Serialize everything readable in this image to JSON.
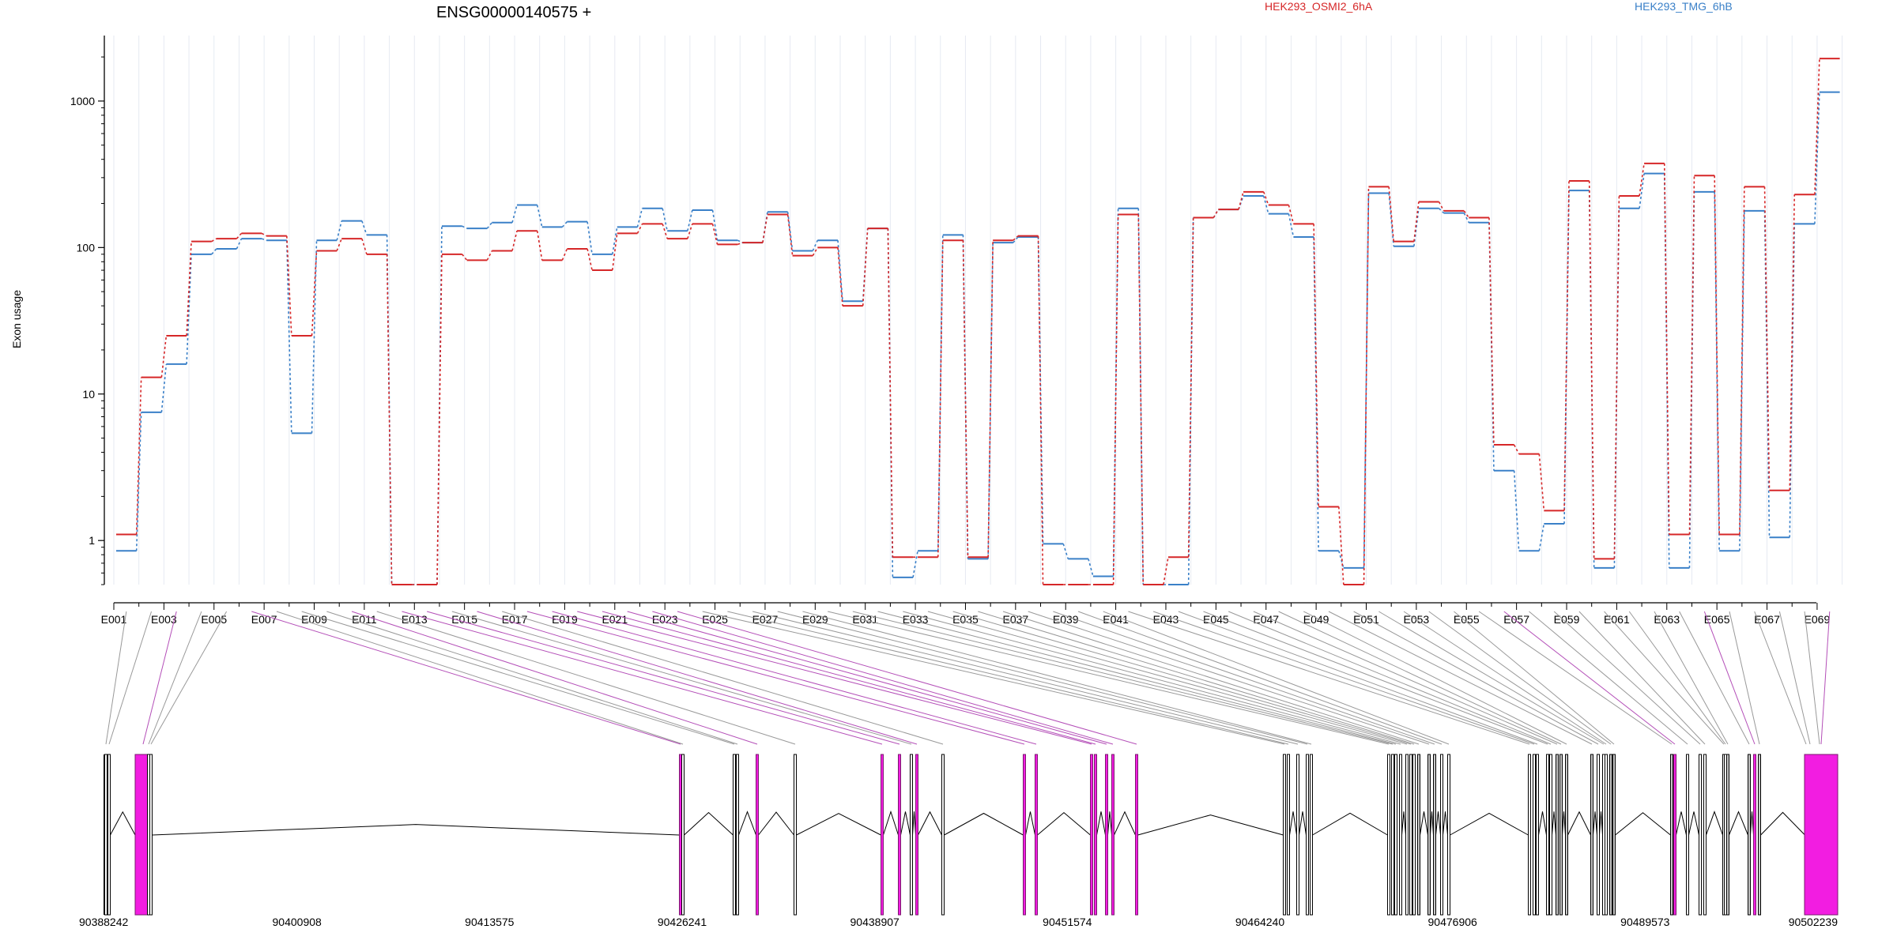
{
  "chart_data": {
    "type": "line",
    "title": "ENSG00000140575 +",
    "ylabel": "Exon usage",
    "yscale": "log",
    "ylim": [
      0.5,
      2800
    ],
    "yticks": [
      1,
      10,
      100,
      1000
    ],
    "ytick_labels": [
      "1",
      "10",
      "100",
      "1000"
    ],
    "colors": {
      "HEK293_OSMI2_6hA": "#d62728",
      "HEK293_TMG_6hB": "#3a80c8",
      "exon_highlight": "#f21de1",
      "exon_plain": "#ffffff",
      "exon_gray": "#c8c8c8"
    },
    "legend_position": "top",
    "exon_tick_labels": [
      "E001",
      "E003",
      "E005",
      "E007",
      "E009",
      "E011",
      "E013",
      "E015",
      "E017",
      "E019",
      "E021",
      "E023",
      "E025",
      "E027",
      "E029",
      "E031",
      "E033",
      "E035",
      "E037",
      "E039",
      "E041",
      "E043",
      "E045",
      "E047",
      "E049",
      "E051",
      "E053",
      "E055",
      "E057",
      "E059",
      "E061",
      "E063",
      "E065",
      "E067",
      "E069"
    ],
    "series": [
      {
        "name": "HEK293_OSMI2_6hA",
        "values": [
          1.1,
          13,
          25,
          110,
          115,
          125,
          120,
          25,
          95,
          115,
          90,
          0.5,
          0.5,
          90,
          82,
          95,
          130,
          82,
          98,
          70,
          125,
          145,
          115,
          145,
          105,
          108,
          168,
          88,
          100,
          40,
          135,
          0.77,
          0.77,
          112,
          0.77,
          112,
          120,
          0.5,
          0.5,
          0.5,
          168,
          0.5,
          0.77,
          160,
          182,
          240,
          195,
          145,
          1.7,
          0.5,
          260,
          110,
          205,
          178,
          160,
          4.5,
          3.9,
          1.6,
          285,
          0.75,
          225,
          375,
          1.1,
          310,
          1.1,
          260,
          2.2,
          230,
          1950
        ]
      },
      {
        "name": "HEK293_TMG_6hB",
        "values": [
          0.85,
          7.5,
          16,
          90,
          98,
          115,
          112,
          5.4,
          112,
          152,
          122,
          0.5,
          0.5,
          140,
          135,
          148,
          195,
          138,
          150,
          90,
          138,
          185,
          130,
          180,
          112,
          108,
          175,
          95,
          112,
          43,
          135,
          0.56,
          0.85,
          122,
          0.75,
          108,
          118,
          0.95,
          0.75,
          0.57,
          185,
          0.5,
          0.5,
          160,
          182,
          225,
          170,
          118,
          0.85,
          0.65,
          235,
          102,
          185,
          172,
          148,
          3.0,
          0.85,
          1.3,
          245,
          0.65,
          185,
          320,
          0.65,
          240,
          0.85,
          178,
          1.05,
          145,
          1150
        ]
      }
    ],
    "genomic_coordinates": [
      "90388242",
      "90400908",
      "90413575",
      "90426241",
      "90438907",
      "90451574",
      "90464240",
      "90476906",
      "90489573",
      "90502239"
    ]
  }
}
